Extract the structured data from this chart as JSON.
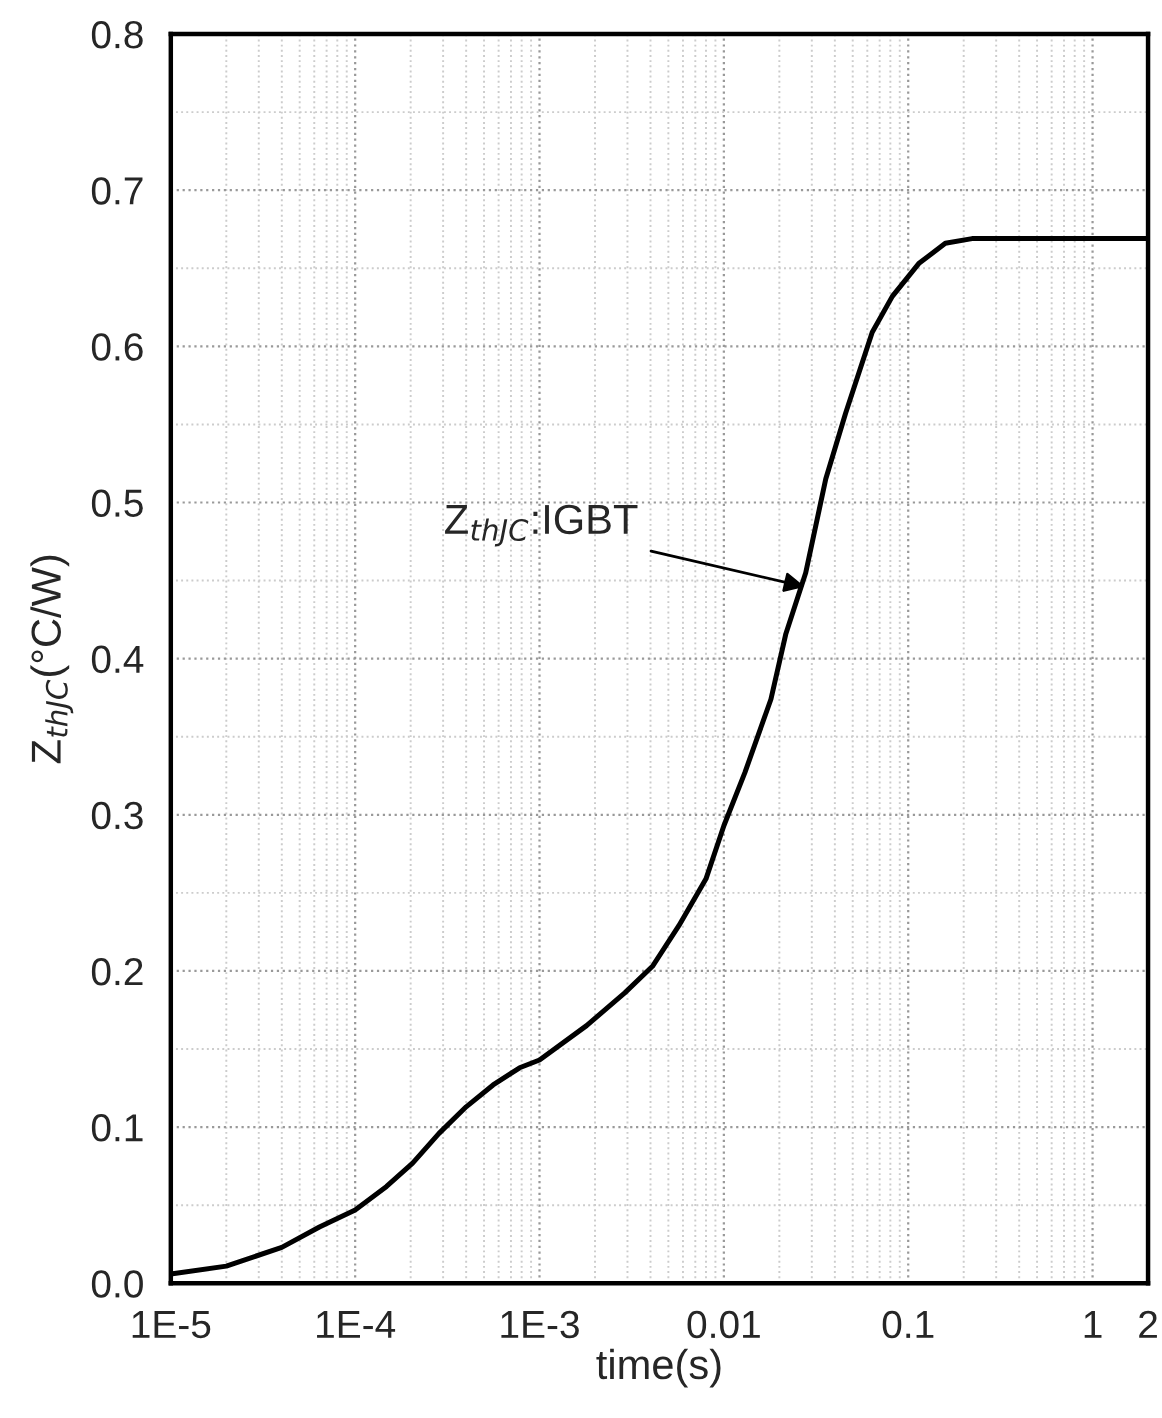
{
  "chart_data": {
    "type": "line",
    "xlabel": "time(s)",
    "ylabel": "Z$_{thJC}$(°C/W)",
    "log": "x",
    "grid": true,
    "marker": "none",
    "line_style": "solid",
    "xlim": [
      1e-05,
      2
    ],
    "ylim": [
      0,
      0.8
    ],
    "xticks": [
      {
        "value": 1e-05,
        "label": "1E-5"
      },
      {
        "value": 0.0001,
        "label": "1E-4"
      },
      {
        "value": 0.001,
        "label": "1E-3"
      },
      0.01,
      0.1,
      1,
      2
    ],
    "yticks": [
      {
        "value": 0,
        "label": "0.0"
      },
      0.1,
      0.2,
      0.3,
      0.4,
      0.5,
      0.6,
      0.7,
      0.8
    ],
    "annotations": [
      {
        "text": "Z$_{thJC}$:IGBT",
        "x": 0.0275,
        "y": 0.446
      }
    ],
    "series": [
      {
        "color": "#000000",
        "x": [
          1e-05,
          2e-05,
          4e-05,
          6.4e-05,
          0.0001,
          0.000148,
          0.000205,
          0.000285,
          0.0004,
          0.00056,
          0.00078,
          0.001,
          0.0018,
          0.0029,
          0.0041,
          0.0057,
          0.008,
          0.01,
          0.013,
          0.018,
          0.0217,
          0.0278,
          0.0357,
          0.0457,
          0.0638,
          0.082,
          0.114,
          0.159,
          0.222,
          2
        ],
        "values": [
          0.006,
          0.011,
          0.023,
          0.036,
          0.047,
          0.062,
          0.077,
          0.096,
          0.113,
          0.127,
          0.138,
          0.143,
          0.165,
          0.186,
          0.203,
          0.229,
          0.259,
          0.293,
          0.327,
          0.374,
          0.416,
          0.455,
          0.515,
          0.557,
          0.609,
          0.632,
          0.653,
          0.666,
          0.669,
          0.669
        ]
      }
    ]
  }
}
